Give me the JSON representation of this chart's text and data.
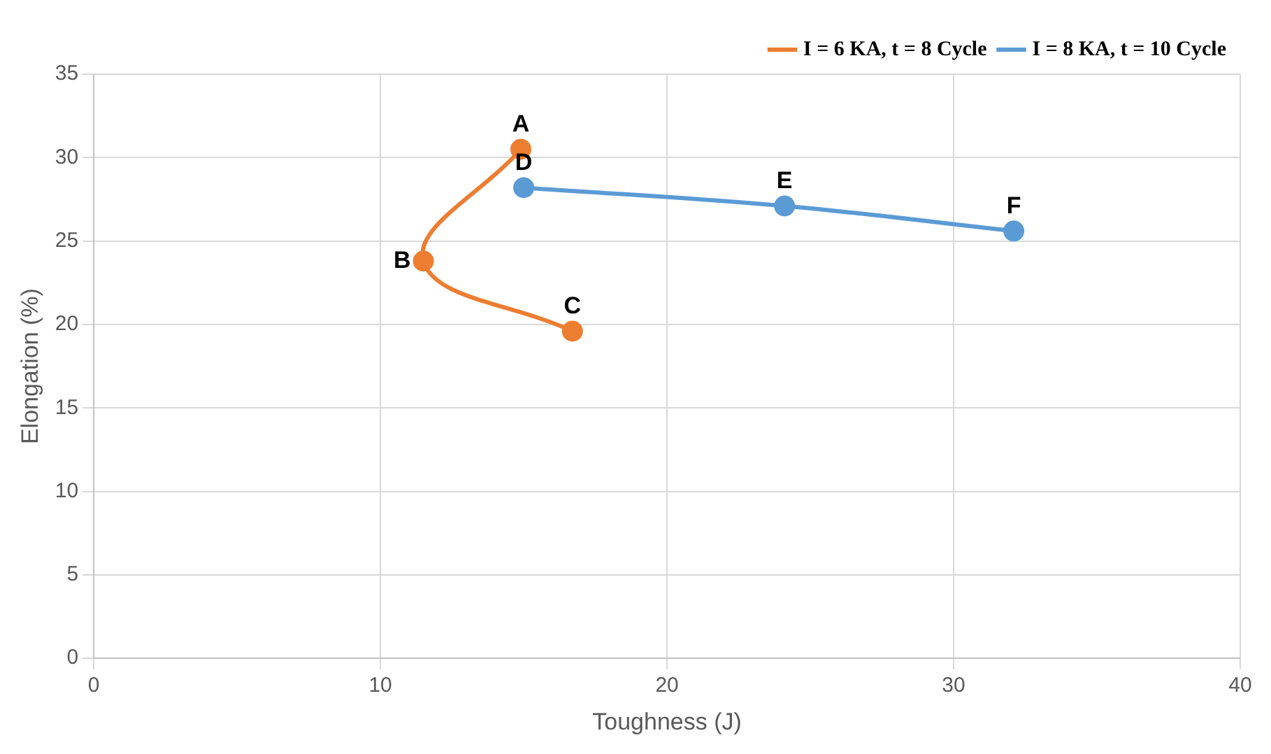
{
  "chart_data": {
    "type": "line",
    "xlabel": "Toughness (J)",
    "ylabel": "Elongation (%)",
    "xlim": [
      0,
      40
    ],
    "xticks": [
      0,
      10,
      20,
      30,
      40
    ],
    "ylim": [
      0,
      35
    ],
    "yticks": [
      0,
      5,
      10,
      15,
      20,
      25,
      30,
      35
    ],
    "grid": true,
    "legend": "top right",
    "marker": "circle",
    "line_style": "solid",
    "series": [
      {
        "name": "I = 6 KA, t = 8 Cycle",
        "color": "#ed7d31",
        "x": [
          14.9,
          11.5,
          16.7
        ],
        "values": [
          30.5,
          23.8,
          19.6
        ]
      },
      {
        "name": "I = 8 KA, t = 10 Cycle",
        "color": "#5b9bd5",
        "x": [
          15.0,
          24.1,
          32.1
        ],
        "values": [
          28.2,
          27.1,
          25.6
        ]
      }
    ],
    "annotations": [
      {
        "text": "A",
        "x": 14.9,
        "y": 30.5
      },
      {
        "text": "B",
        "x": 11.5,
        "y": 23.8
      },
      {
        "text": "C",
        "x": 16.7,
        "y": 19.6
      },
      {
        "text": "D",
        "x": 15.0,
        "y": 28.2
      },
      {
        "text": "E",
        "x": 24.1,
        "y": 27.1
      },
      {
        "text": "F",
        "x": 32.1,
        "y": 25.6
      }
    ]
  }
}
